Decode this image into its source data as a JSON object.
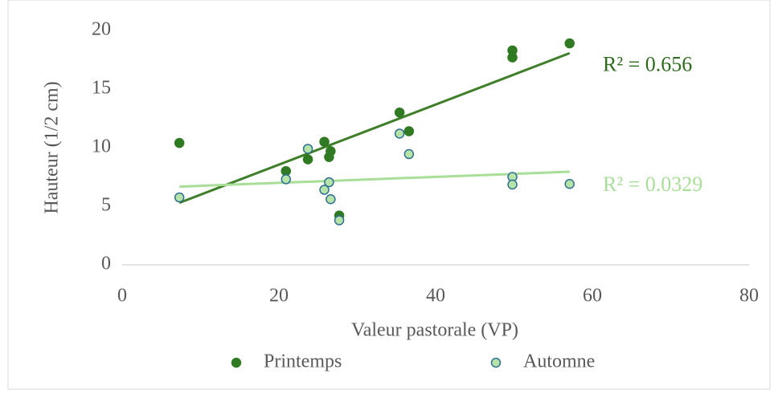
{
  "chart_data": {
    "type": "scatter",
    "xlabel": "Valeur pastorale (VP)",
    "ylabel": "Hauteur (1/2 cm)",
    "xlim": [
      0,
      80
    ],
    "xticks": [
      0,
      20,
      40,
      60,
      80
    ],
    "ylim": [
      0,
      20
    ],
    "yticks": [
      0,
      5,
      10,
      15,
      20
    ],
    "grid": false,
    "legend": "bottom",
    "series": [
      {
        "name": "Printemps",
        "color": "#2f7a22",
        "edgecolor": "#2f7a22",
        "trendline_color": "#3f7f2a",
        "r2_label": "R² = 0.656",
        "x": [
          7.3,
          20.9,
          23.7,
          25.8,
          26.6,
          26.4,
          27.7,
          35.4,
          36.6,
          49.8,
          49.8,
          57.1
        ],
        "values": [
          10.4,
          8.0,
          9.0,
          10.5,
          9.7,
          9.2,
          4.2,
          13.0,
          11.4,
          18.3,
          17.7,
          18.9
        ]
      },
      {
        "name": "Automne",
        "color": "#b5e3a8",
        "edgecolor": "#2f6f94",
        "trendline_color": "#a8de98",
        "r2_label": "R² = 0.0329",
        "x": [
          7.3,
          20.9,
          23.7,
          25.8,
          26.4,
          26.6,
          27.7,
          35.4,
          36.6,
          49.8,
          49.8,
          57.1
        ],
        "values": [
          5.75,
          7.3,
          9.9,
          6.4,
          7.05,
          5.6,
          3.8,
          11.2,
          9.45,
          7.5,
          6.85,
          6.9
        ]
      }
    ]
  }
}
